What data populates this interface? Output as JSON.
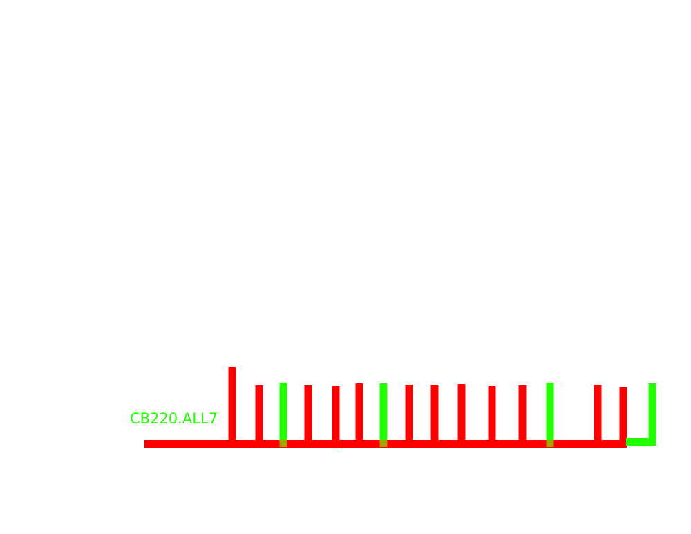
{
  "diagram": {
    "label": "CB220.ALL7",
    "colors": {
      "background": "#ffffff",
      "inactive": "#ff0000",
      "active": "#22ff00",
      "junction": "#9aa800"
    },
    "branches": [
      {
        "state": "inactive"
      },
      {
        "state": "inactive"
      },
      {
        "state": "active"
      },
      {
        "state": "inactive"
      },
      {
        "state": "inactive"
      },
      {
        "state": "inactive"
      },
      {
        "state": "active"
      },
      {
        "state": "inactive"
      },
      {
        "state": "inactive"
      },
      {
        "state": "inactive"
      },
      {
        "state": "inactive"
      },
      {
        "state": "inactive"
      },
      {
        "state": "active"
      },
      {
        "state": "inactive"
      },
      {
        "state": "inactive"
      },
      {
        "state": "active"
      }
    ]
  }
}
